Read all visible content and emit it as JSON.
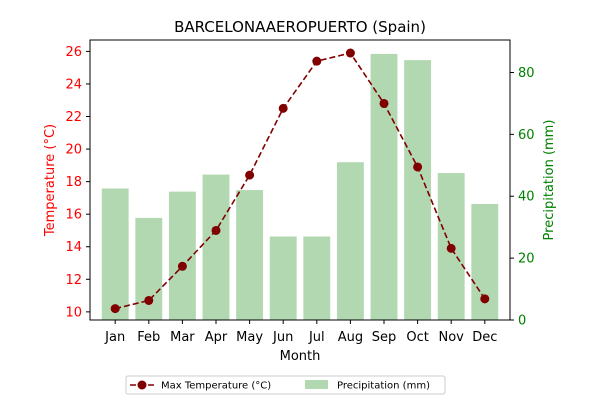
{
  "chart_data": {
    "type": "bar+line",
    "title": "BARCELONAAEROPUERTO (Spain)",
    "xlabel": "Month",
    "ylabel_left": "Temperature (°C)",
    "ylabel_right": "Precipitation (mm)",
    "categories": [
      "Jan",
      "Feb",
      "Mar",
      "Apr",
      "May",
      "Jun",
      "Jul",
      "Aug",
      "Sep",
      "Oct",
      "Nov",
      "Dec"
    ],
    "series": [
      {
        "name": "Max Temperature (°C)",
        "kind": "line",
        "axis": "left",
        "values": [
          10.2,
          10.7,
          12.8,
          15.0,
          18.4,
          22.5,
          25.4,
          25.9,
          22.8,
          18.9,
          13.9,
          10.8
        ]
      },
      {
        "name": "Precipitation (mm)",
        "kind": "bar",
        "axis": "right",
        "values": [
          42.5,
          33.0,
          41.5,
          47.0,
          42.0,
          27.0,
          27.0,
          51.0,
          86.0,
          84.0,
          47.5,
          37.5
        ]
      }
    ],
    "ylim_left": [
      9.5,
      26.7
    ],
    "ylim_right": [
      0,
      90.5
    ],
    "yticks_left": [
      10,
      12,
      14,
      16,
      18,
      20,
      22,
      24,
      26
    ],
    "yticks_right": [
      0,
      20,
      40,
      60,
      80
    ],
    "grid": false,
    "legend": {
      "placement": "bottom-center",
      "columns": 2
    },
    "colors": {
      "line": "#800000",
      "marker": "#800000",
      "bar": "#b2d8b2",
      "left_axis": "#ff0000",
      "right_axis": "#008000",
      "text": "#000000"
    }
  }
}
